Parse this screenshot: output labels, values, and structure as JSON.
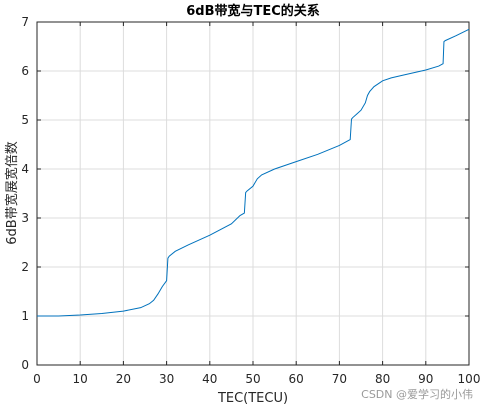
{
  "chart_data": {
    "type": "line",
    "title": "6dB带宽与TEC的关系",
    "xlabel": "TEC(TECU)",
    "ylabel": "6dB带宽展宽倍数",
    "xlim": [
      0,
      100
    ],
    "ylim": [
      0,
      7
    ],
    "xticks": [
      "0",
      "10",
      "20",
      "30",
      "40",
      "50",
      "60",
      "70",
      "80",
      "90",
      "100"
    ],
    "yticks": [
      "0",
      "1",
      "2",
      "3",
      "4",
      "5",
      "6",
      "7"
    ],
    "grid": true,
    "line_color": "#0072BD",
    "series": [
      {
        "x": [
          0,
          5,
          10,
          15,
          20,
          24,
          26,
          27,
          28,
          29,
          30,
          30.3,
          30.6,
          32,
          35,
          40,
          45,
          47,
          48,
          48.3,
          48.6,
          50,
          51,
          52,
          55,
          60,
          65,
          70,
          72.5,
          72.8,
          73.1,
          74,
          75,
          76,
          76.5,
          77,
          78,
          80,
          82,
          85,
          90,
          93,
          94,
          94.2,
          94.5,
          97,
          100
        ],
        "y": [
          1.0,
          1.0,
          1.02,
          1.05,
          1.1,
          1.17,
          1.25,
          1.32,
          1.45,
          1.6,
          1.72,
          2.18,
          2.22,
          2.32,
          2.45,
          2.65,
          2.88,
          3.05,
          3.1,
          3.52,
          3.55,
          3.65,
          3.8,
          3.88,
          4.0,
          4.15,
          4.3,
          4.48,
          4.6,
          5.02,
          5.05,
          5.12,
          5.2,
          5.35,
          5.5,
          5.58,
          5.68,
          5.8,
          5.86,
          5.92,
          6.02,
          6.1,
          6.15,
          6.6,
          6.62,
          6.72,
          6.85
        ]
      }
    ]
  },
  "watermark": "CSDN @爱学习的小伟"
}
